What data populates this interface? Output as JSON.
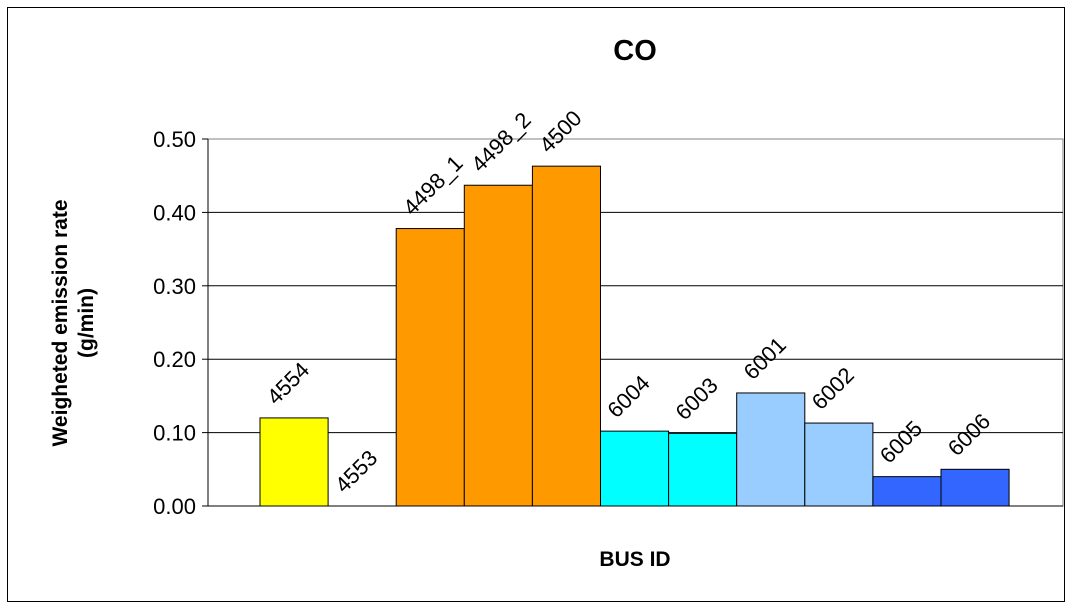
{
  "chart_data": {
    "type": "bar",
    "title": "CO",
    "xlabel": "BUS ID",
    "ylabel_lines": [
      "Weigheted emission rate",
      "(g/min)"
    ],
    "ylim": [
      0,
      0.5
    ],
    "yticks": [
      "0.00",
      "0.10",
      "0.20",
      "0.30",
      "0.40",
      "0.50"
    ],
    "ytick_values": [
      0,
      0.1,
      0.2,
      0.3,
      0.4,
      0.5
    ],
    "grid": true,
    "legend": "none",
    "categories": [
      "4554",
      "4553",
      "4498_1",
      "4498_2",
      "4500",
      "6004",
      "6003",
      "6001",
      "6002",
      "6005",
      "6006"
    ],
    "values": [
      0.12,
      0.0,
      0.378,
      0.437,
      0.463,
      0.102,
      0.099,
      0.154,
      0.113,
      0.04,
      0.05
    ],
    "colors": [
      "#ffff00",
      "#ff9900",
      "#ff9900",
      "#ff9900",
      "#ff9900",
      "#00ffff",
      "#00ffff",
      "#99ccff",
      "#99ccff",
      "#3366ff",
      "#3366ff"
    ],
    "plot_background": "#ffffff",
    "frame_color": "#808080"
  }
}
